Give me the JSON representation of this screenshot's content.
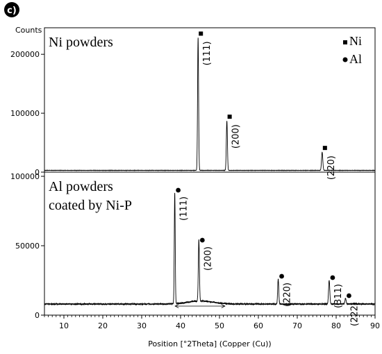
{
  "panel_label": "c)",
  "y_axis_title": "Counts",
  "x_axis_title": "Position [°2Theta] (Copper (Cu))",
  "legend": {
    "placement": "top-right",
    "items": [
      {
        "label": "Ni",
        "marker": "square"
      },
      {
        "label": "Al",
        "marker": "circle"
      }
    ]
  },
  "chart_data": [
    {
      "type": "line",
      "title": "Ni powders",
      "xlim": [
        5,
        90
      ],
      "ylim": [
        0,
        245000
      ],
      "yticks": [
        0,
        100000,
        200000
      ],
      "baseline": 3000,
      "peaks": [
        {
          "x": 44.5,
          "y": 228000,
          "width": 0.13,
          "label": "(111)",
          "phase": "Ni"
        },
        {
          "x": 51.9,
          "y": 87000,
          "width": 0.14,
          "label": "(200)",
          "phase": "Ni"
        },
        {
          "x": 76.4,
          "y": 34000,
          "width": 0.16,
          "label": "(220)",
          "phase": "Ni"
        }
      ]
    },
    {
      "type": "line",
      "title_lines": [
        "Al powders",
        "coated by Ni-P"
      ],
      "xlim": [
        5,
        90
      ],
      "ylim": [
        0,
        103000
      ],
      "yticks": [
        0,
        50000,
        100000
      ],
      "xticks": [
        10,
        20,
        30,
        40,
        50,
        60,
        70,
        80,
        90
      ],
      "baseline": 8000,
      "broad_hump": {
        "center": 45,
        "width": 3.2,
        "height": 2200
      },
      "peaks": [
        {
          "x": 38.5,
          "y": 88000,
          "width": 0.12,
          "label": "(111)",
          "phase": "Al"
        },
        {
          "x": 44.7,
          "y": 52000,
          "width": 0.14,
          "label": "(200)",
          "phase": "Al"
        },
        {
          "x": 65.1,
          "y": 26000,
          "width": 0.14,
          "label": "(220)",
          "phase": "Al"
        },
        {
          "x": 78.2,
          "y": 25000,
          "width": 0.16,
          "label": "(311)",
          "phase": "Al"
        },
        {
          "x": 82.4,
          "y": 12000,
          "width": 0.16,
          "label": "(222)",
          "phase": "Al"
        }
      ]
    }
  ]
}
